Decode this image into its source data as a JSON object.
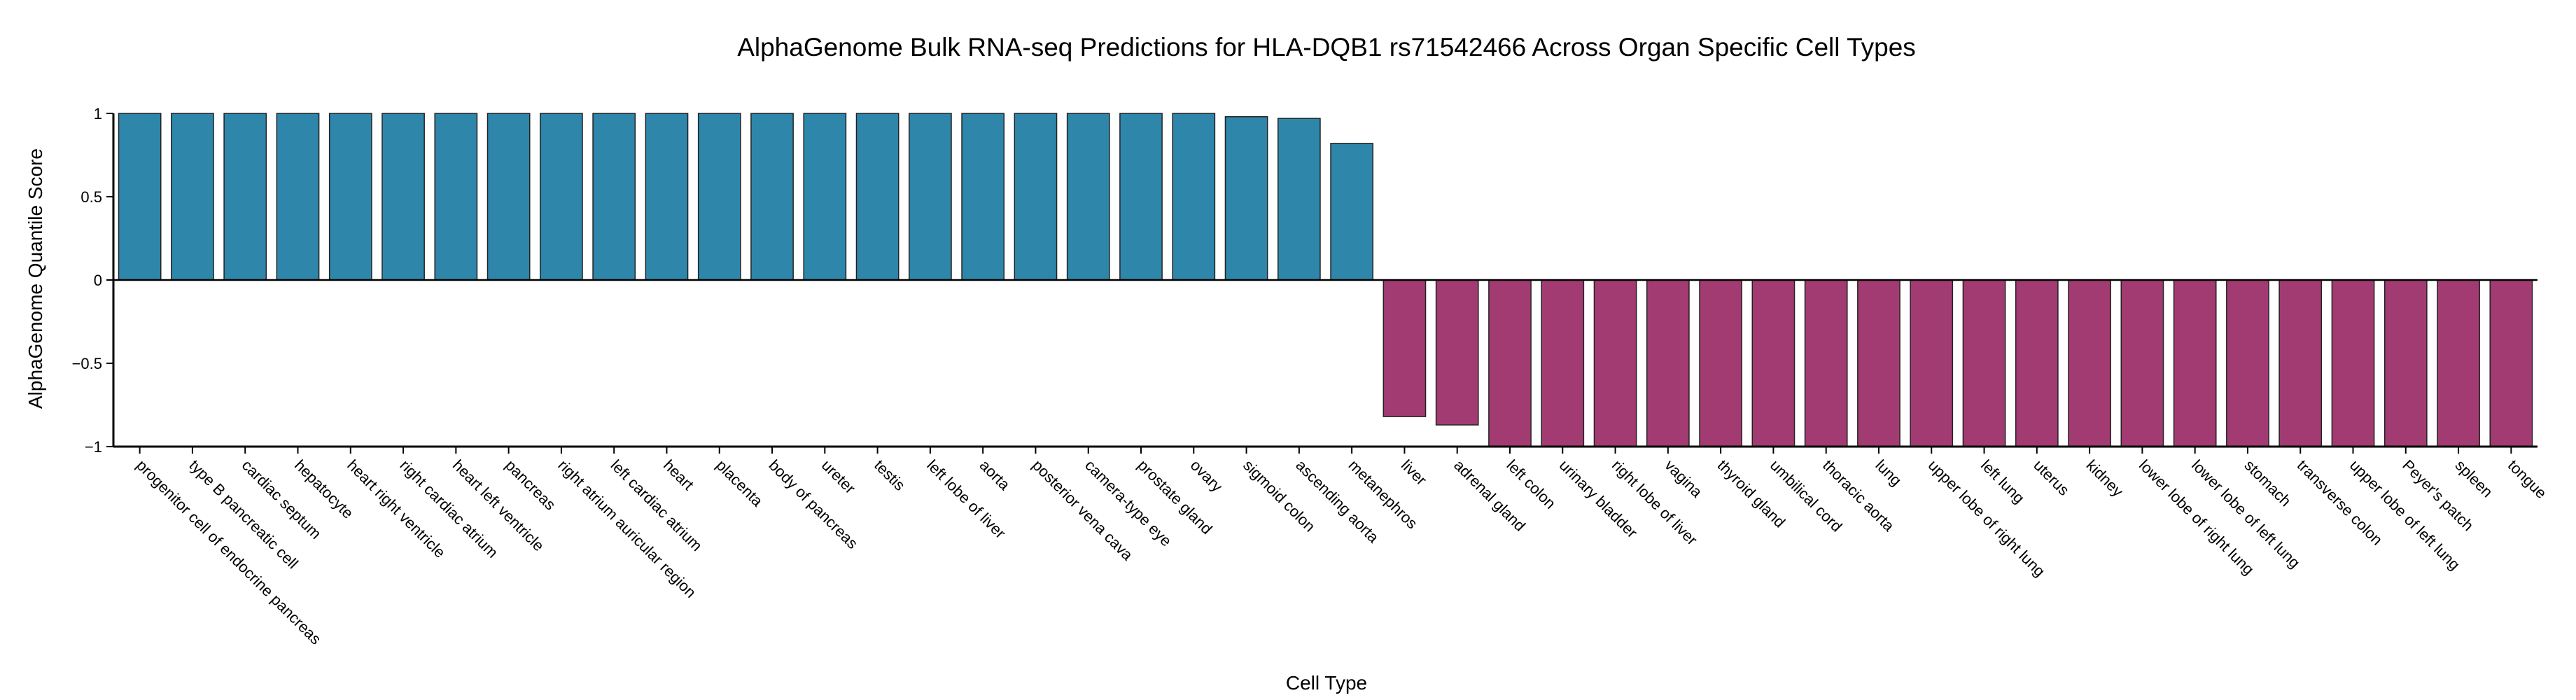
{
  "chart_data": {
    "type": "bar",
    "title": "AlphaGenome Bulk RNA-seq Predictions for HLA-DQB1 rs71542466 Across Organ Specific Cell Types",
    "xlabel": "Cell Type",
    "ylabel": "AlphaGenome Quantile Score",
    "ylim": [
      -1,
      1
    ],
    "yticks": [
      1,
      0.5,
      0,
      -0.5,
      -1
    ],
    "ytick_labels": [
      "1",
      "0.5",
      "0",
      "−0.5",
      "−1"
    ],
    "grid": false,
    "legend": "none",
    "colors": {
      "positive": "#2e86ab",
      "negative": "#a23b72"
    },
    "categories": [
      "progenitor cell of endocrine pancreas",
      "type B pancreatic cell",
      "cardiac septum",
      "hepatocyte",
      "heart right ventricle",
      "right cardiac atrium",
      "heart left ventricle",
      "pancreas",
      "right atrium auricular region",
      "left cardiac atrium",
      "heart",
      "placenta",
      "body of pancreas",
      "ureter",
      "testis",
      "left lobe of liver",
      "aorta",
      "posterior vena cava",
      "camera-type eye",
      "prostate gland",
      "ovary",
      "sigmoid colon",
      "ascending aorta",
      "metanephros",
      "liver",
      "adrenal gland",
      "left colon",
      "urinary bladder",
      "right lobe of liver",
      "vagina",
      "thyroid gland",
      "umbilical cord",
      "thoracic aorta",
      "lung",
      "upper lobe of right lung",
      "left lung",
      "uterus",
      "kidney",
      "lower lobe of right lung",
      "lower lobe of left lung",
      "stomach",
      "transverse colon",
      "upper lobe of left lung",
      "Peyer's patch",
      "spleen",
      "tongue"
    ],
    "values": [
      1.0,
      1.0,
      1.0,
      1.0,
      1.0,
      1.0,
      1.0,
      1.0,
      1.0,
      1.0,
      1.0,
      1.0,
      1.0,
      1.0,
      1.0,
      1.0,
      1.0,
      1.0,
      1.0,
      1.0,
      1.0,
      0.98,
      0.97,
      0.82,
      -0.82,
      -0.87,
      -1.0,
      -1.0,
      -1.0,
      -1.0,
      -1.0,
      -1.0,
      -1.0,
      -1.0,
      -1.0,
      -1.0,
      -1.0,
      -1.0,
      -1.0,
      -1.0,
      -1.0,
      -1.0,
      -1.0,
      -1.0,
      -1.0,
      -1.0
    ]
  }
}
